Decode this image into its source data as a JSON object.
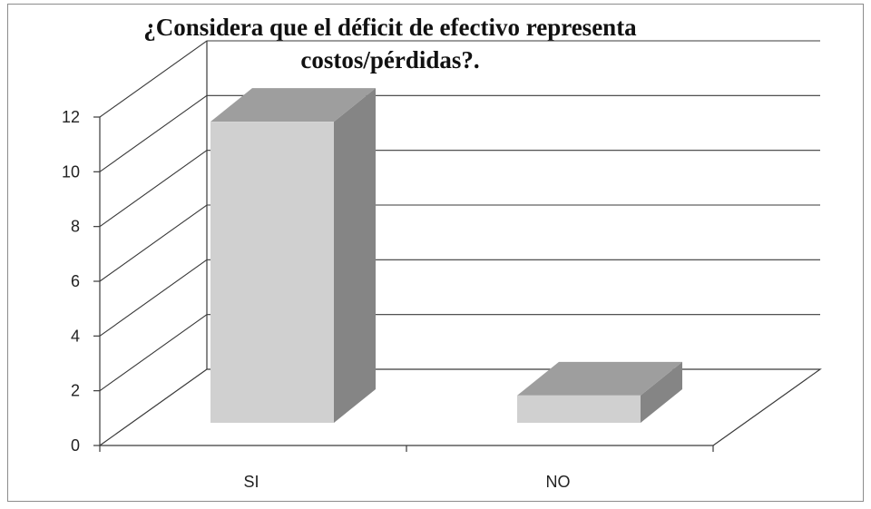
{
  "chart_data": {
    "type": "bar",
    "title": "¿Considera que el déficit de efectivo representa costos/pérdidas?.",
    "title_lines": [
      "¿Considera que el déficit de efectivo representa",
      "costos/pérdidas?."
    ],
    "categories": [
      "SI",
      "NO"
    ],
    "values": [
      11,
      1
    ],
    "xlabel": "",
    "ylabel": "",
    "ylim": [
      0,
      12
    ],
    "yticks": [
      0,
      2,
      4,
      6,
      8,
      10,
      12
    ],
    "grid": true,
    "style": "3d-column",
    "colors": {
      "bar_front": "#d0d0d0",
      "bar_top": "#9e9e9e",
      "bar_side": "#858585",
      "grid": "#3a3a3a"
    }
  }
}
